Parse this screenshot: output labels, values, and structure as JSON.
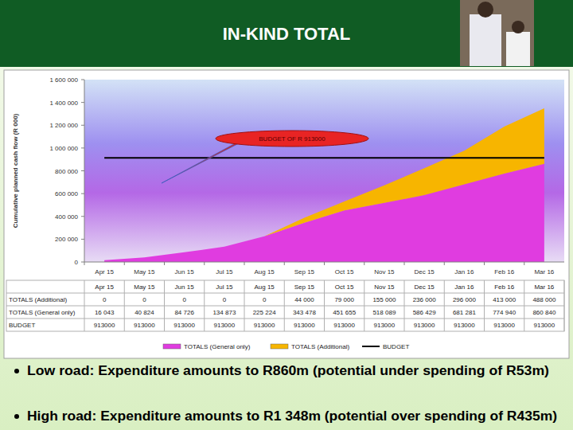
{
  "chart_data": {
    "type": "area",
    "title": "IN-KIND TOTAL",
    "y_label": "Cumulative planned cash flow (R 000)",
    "annotations": [
      "BUDGET OF R 913000"
    ],
    "notes": [
      "Low road: Expenditure amounts to R860m (potential under spending of R53m)",
      "High road: Expenditure amounts to R1 348m (potential over spending of R435m)"
    ],
    "categories": [
      "Apr 15",
      "May 15",
      "Jun 15",
      "Jul 15",
      "Aug 15",
      "Sep 15",
      "Oct 15",
      "Nov 15",
      "Dec 15",
      "Jan 16",
      "Feb 16",
      "Mar 16"
    ],
    "stacked": true,
    "grid": false,
    "legend": "bottom",
    "ylim": [
      0,
      1600000
    ],
    "yticks": [
      0,
      {
        "value": 200000,
        "label": "200 000"
      },
      {
        "value": 400000,
        "label": "400 000"
      },
      {
        "value": 600000,
        "label": "600 000"
      },
      {
        "value": 800000,
        "label": "800 000"
      },
      {
        "value": 1000000,
        "label": "1 000 000"
      },
      {
        "value": 1200000,
        "label": "1 200 000"
      },
      {
        "value": 1400000,
        "label": "1 400 000"
      },
      {
        "value": 1600000,
        "label": "1 600 000"
      }
    ],
    "series": [
      {
        "name": "TOTALS (General only)",
        "color": "#e03ce0",
        "values": [
          16043,
          40824,
          84726,
          134873,
          225224,
          343478,
          451655,
          518089,
          586429,
          681281,
          774940,
          860840
        ],
        "value_labels": [
          "16 043",
          "40 824",
          "84 726",
          "134 873",
          "225 224",
          "343 478",
          "451 655",
          "518 089",
          "586 429",
          "681 281",
          "774 940",
          "860 840"
        ]
      },
      {
        "name": "TOTALS (Additional)",
        "color": "#f7b500",
        "values": [
          0,
          0,
          0,
          0,
          0,
          44000,
          79000,
          155000,
          236000,
          296000,
          413000,
          488000
        ],
        "value_labels": [
          "0",
          "0",
          "0",
          "0",
          "0",
          "44 000",
          "79 000",
          "155 000",
          "236 000",
          "296 000",
          "413 000",
          "488 000"
        ]
      },
      {
        "name": "BUDGET",
        "type": "line",
        "color": "#000000",
        "values": [
          913000,
          913000,
          913000,
          913000,
          913000,
          913000,
          913000,
          913000,
          913000,
          913000,
          913000,
          913000
        ]
      }
    ]
  }
}
